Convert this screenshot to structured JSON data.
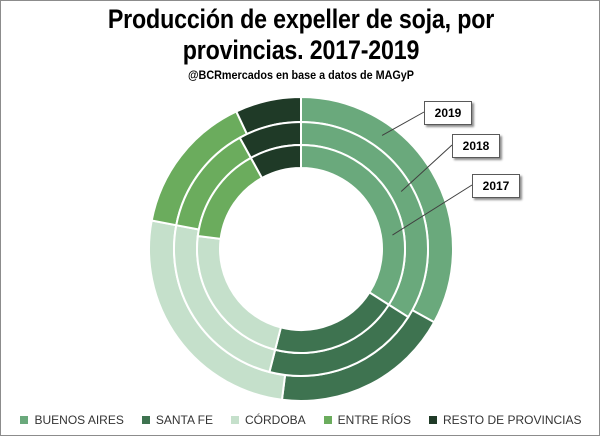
{
  "chart_data": {
    "type": "donut",
    "title_line1": "Producción de expeller de soja, por",
    "title_line2": "provincias. 2017-2019",
    "subtitle": "@BCRmercados en base a datos de MAGyP",
    "categories": [
      "BUENOS AIRES",
      "SANTA FE",
      "CÓRDOBA",
      "ENTRE RÍOS",
      "RESTO DE PROVINCIAS"
    ],
    "colors": [
      "#6aa97c",
      "#3e7350",
      "#c5e0cb",
      "#6bac5d",
      "#1f3a27"
    ],
    "series": [
      {
        "name": "2019",
        "ring": "outer",
        "values": [
          33,
          19,
          26,
          15,
          7
        ]
      },
      {
        "name": "2018",
        "ring": "middle",
        "values": [
          34,
          20,
          24,
          14,
          8
        ]
      },
      {
        "name": "2017",
        "ring": "inner",
        "values": [
          34,
          20,
          23,
          15,
          8
        ]
      }
    ],
    "legend_position": "bottom"
  }
}
